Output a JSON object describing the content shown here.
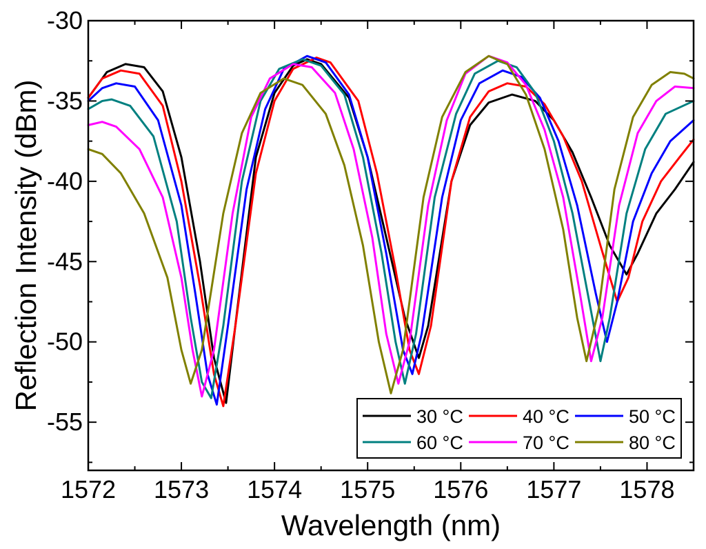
{
  "chart_data": {
    "type": "line",
    "xlabel": "Wavelength (nm)",
    "ylabel": "Reflection Intensity (dBm)",
    "xlim": [
      1572,
      1578.5
    ],
    "ylim": [
      -58,
      -30
    ],
    "xticks": [
      1572,
      1573,
      1574,
      1575,
      1576,
      1577,
      1578
    ],
    "yticks": [
      -30,
      -35,
      -40,
      -45,
      -50,
      -55
    ],
    "xtick_labels": [
      "1572",
      "1573",
      "1574",
      "1575",
      "1576",
      "1577",
      "1578"
    ],
    "ytick_labels": [
      "-30",
      "-35",
      "-40",
      "-45",
      "-50",
      "-55"
    ],
    "grid": false,
    "legend_position": "bottom-right",
    "series": [
      {
        "name": "30 °C",
        "color": "#000000",
        "points": [
          [
            1572.0,
            -34.8
          ],
          [
            1572.2,
            -33.2
          ],
          [
            1572.4,
            -32.7
          ],
          [
            1572.6,
            -32.9
          ],
          [
            1572.8,
            -34.4
          ],
          [
            1573.0,
            -38.5
          ],
          [
            1573.2,
            -45.0
          ],
          [
            1573.35,
            -51.0
          ],
          [
            1573.48,
            -53.8
          ],
          [
            1573.6,
            -48.0
          ],
          [
            1573.8,
            -38.5
          ],
          [
            1574.0,
            -34.5
          ],
          [
            1574.2,
            -32.8
          ],
          [
            1574.35,
            -32.4
          ],
          [
            1574.5,
            -32.7
          ],
          [
            1574.8,
            -34.8
          ],
          [
            1575.0,
            -38.5
          ],
          [
            1575.2,
            -43.5
          ],
          [
            1575.4,
            -48.5
          ],
          [
            1575.55,
            -51.0
          ],
          [
            1575.65,
            -49.0
          ],
          [
            1575.9,
            -40.0
          ],
          [
            1576.1,
            -36.5
          ],
          [
            1576.3,
            -35.1
          ],
          [
            1576.55,
            -34.6
          ],
          [
            1576.8,
            -35.0
          ],
          [
            1577.0,
            -36.2
          ],
          [
            1577.2,
            -38.2
          ],
          [
            1577.4,
            -41.0
          ],
          [
            1577.6,
            -44.0
          ],
          [
            1577.78,
            -45.8
          ],
          [
            1577.9,
            -44.5
          ],
          [
            1578.1,
            -42.0
          ],
          [
            1578.3,
            -40.5
          ],
          [
            1578.5,
            -38.8
          ]
        ]
      },
      {
        "name": "40 °C",
        "color": "#ff0000",
        "points": [
          [
            1572.0,
            -34.8
          ],
          [
            1572.15,
            -33.6
          ],
          [
            1572.35,
            -33.1
          ],
          [
            1572.55,
            -33.3
          ],
          [
            1572.8,
            -35.3
          ],
          [
            1573.0,
            -40.0
          ],
          [
            1573.2,
            -46.5
          ],
          [
            1573.35,
            -52.0
          ],
          [
            1573.45,
            -54.0
          ],
          [
            1573.58,
            -49.0
          ],
          [
            1573.8,
            -39.5
          ],
          [
            1574.0,
            -35.0
          ],
          [
            1574.2,
            -33.0
          ],
          [
            1574.45,
            -32.3
          ],
          [
            1574.6,
            -32.6
          ],
          [
            1574.9,
            -35.0
          ],
          [
            1575.1,
            -39.5
          ],
          [
            1575.3,
            -45.5
          ],
          [
            1575.45,
            -50.5
          ],
          [
            1575.55,
            -52.0
          ],
          [
            1575.68,
            -49.0
          ],
          [
            1575.9,
            -40.0
          ],
          [
            1576.1,
            -36.0
          ],
          [
            1576.3,
            -34.4
          ],
          [
            1576.5,
            -33.9
          ],
          [
            1576.7,
            -34.1
          ],
          [
            1576.9,
            -35.2
          ],
          [
            1577.1,
            -37.2
          ],
          [
            1577.3,
            -40.0
          ],
          [
            1577.5,
            -44.0
          ],
          [
            1577.68,
            -47.5
          ],
          [
            1577.8,
            -46.0
          ],
          [
            1577.95,
            -42.5
          ],
          [
            1578.15,
            -40.0
          ],
          [
            1578.35,
            -38.5
          ],
          [
            1578.5,
            -37.4
          ]
        ]
      },
      {
        "name": "50 °C",
        "color": "#0000ff",
        "points": [
          [
            1572.0,
            -35.0
          ],
          [
            1572.15,
            -34.2
          ],
          [
            1572.3,
            -33.9
          ],
          [
            1572.5,
            -34.1
          ],
          [
            1572.75,
            -36.2
          ],
          [
            1573.0,
            -41.5
          ],
          [
            1573.15,
            -47.0
          ],
          [
            1573.28,
            -52.0
          ],
          [
            1573.38,
            -53.9
          ],
          [
            1573.5,
            -49.0
          ],
          [
            1573.7,
            -40.5
          ],
          [
            1573.9,
            -35.5
          ],
          [
            1574.1,
            -33.0
          ],
          [
            1574.35,
            -32.2
          ],
          [
            1574.55,
            -32.6
          ],
          [
            1574.8,
            -34.6
          ],
          [
            1575.0,
            -38.5
          ],
          [
            1575.2,
            -44.5
          ],
          [
            1575.38,
            -50.5
          ],
          [
            1575.48,
            -52.0
          ],
          [
            1575.58,
            -49.5
          ],
          [
            1575.8,
            -41.0
          ],
          [
            1576.0,
            -36.2
          ],
          [
            1576.2,
            -33.9
          ],
          [
            1576.45,
            -33.1
          ],
          [
            1576.65,
            -33.5
          ],
          [
            1576.85,
            -34.8
          ],
          [
            1577.05,
            -37.5
          ],
          [
            1577.25,
            -41.5
          ],
          [
            1577.45,
            -47.0
          ],
          [
            1577.57,
            -50.0
          ],
          [
            1577.68,
            -47.5
          ],
          [
            1577.85,
            -42.5
          ],
          [
            1578.05,
            -39.5
          ],
          [
            1578.25,
            -37.5
          ],
          [
            1578.5,
            -36.2
          ]
        ]
      },
      {
        "name": "60 °C",
        "color": "#008080",
        "points": [
          [
            1572.0,
            -35.5
          ],
          [
            1572.15,
            -35.0
          ],
          [
            1572.25,
            -34.9
          ],
          [
            1572.45,
            -35.3
          ],
          [
            1572.7,
            -37.2
          ],
          [
            1572.95,
            -42.5
          ],
          [
            1573.1,
            -48.5
          ],
          [
            1573.22,
            -52.5
          ],
          [
            1573.32,
            -53.5
          ],
          [
            1573.45,
            -49.0
          ],
          [
            1573.65,
            -40.0
          ],
          [
            1573.85,
            -35.0
          ],
          [
            1574.05,
            -33.0
          ],
          [
            1574.3,
            -32.4
          ],
          [
            1574.5,
            -32.8
          ],
          [
            1574.75,
            -34.6
          ],
          [
            1574.95,
            -38.5
          ],
          [
            1575.15,
            -44.5
          ],
          [
            1575.3,
            -50.0
          ],
          [
            1575.4,
            -52.6
          ],
          [
            1575.52,
            -49.5
          ],
          [
            1575.72,
            -41.0
          ],
          [
            1575.95,
            -35.8
          ],
          [
            1576.15,
            -33.3
          ],
          [
            1576.4,
            -32.5
          ],
          [
            1576.6,
            -32.9
          ],
          [
            1576.8,
            -34.5
          ],
          [
            1577.0,
            -37.5
          ],
          [
            1577.2,
            -42.0
          ],
          [
            1577.38,
            -47.5
          ],
          [
            1577.5,
            -51.2
          ],
          [
            1577.6,
            -48.5
          ],
          [
            1577.78,
            -42.0
          ],
          [
            1577.98,
            -38.0
          ],
          [
            1578.2,
            -35.8
          ],
          [
            1578.5,
            -35.0
          ]
        ]
      },
      {
        "name": "70 °C",
        "color": "#ff00ff",
        "points": [
          [
            1572.0,
            -36.5
          ],
          [
            1572.15,
            -36.3
          ],
          [
            1572.3,
            -36.6
          ],
          [
            1572.55,
            -38.0
          ],
          [
            1572.8,
            -41.0
          ],
          [
            1573.0,
            -46.0
          ],
          [
            1573.12,
            -50.5
          ],
          [
            1573.22,
            -53.4
          ],
          [
            1573.35,
            -50.5
          ],
          [
            1573.55,
            -42.0
          ],
          [
            1573.75,
            -36.0
          ],
          [
            1573.95,
            -33.6
          ],
          [
            1574.2,
            -32.7
          ],
          [
            1574.4,
            -32.9
          ],
          [
            1574.65,
            -34.5
          ],
          [
            1574.85,
            -38.0
          ],
          [
            1575.05,
            -43.5
          ],
          [
            1575.2,
            -49.5
          ],
          [
            1575.33,
            -52.6
          ],
          [
            1575.45,
            -50.0
          ],
          [
            1575.65,
            -41.5
          ],
          [
            1575.85,
            -36.2
          ],
          [
            1576.05,
            -33.3
          ],
          [
            1576.3,
            -32.2
          ],
          [
            1576.5,
            -32.6
          ],
          [
            1576.7,
            -34.0
          ],
          [
            1576.9,
            -36.8
          ],
          [
            1577.1,
            -41.0
          ],
          [
            1577.28,
            -47.0
          ],
          [
            1577.4,
            -51.2
          ],
          [
            1577.52,
            -48.5
          ],
          [
            1577.7,
            -41.5
          ],
          [
            1577.9,
            -37.0
          ],
          [
            1578.1,
            -35.0
          ],
          [
            1578.3,
            -34.1
          ],
          [
            1578.5,
            -34.2
          ]
        ]
      },
      {
        "name": "80 °C",
        "color": "#808000",
        "points": [
          [
            1572.0,
            -38.0
          ],
          [
            1572.15,
            -38.3
          ],
          [
            1572.35,
            -39.5
          ],
          [
            1572.6,
            -42.0
          ],
          [
            1572.85,
            -46.0
          ],
          [
            1573.0,
            -50.5
          ],
          [
            1573.1,
            -52.6
          ],
          [
            1573.22,
            -50.5
          ],
          [
            1573.45,
            -42.0
          ],
          [
            1573.65,
            -37.0
          ],
          [
            1573.85,
            -34.5
          ],
          [
            1574.1,
            -33.6
          ],
          [
            1574.3,
            -34.0
          ],
          [
            1574.55,
            -35.8
          ],
          [
            1574.75,
            -39.0
          ],
          [
            1574.95,
            -44.0
          ],
          [
            1575.12,
            -50.0
          ],
          [
            1575.25,
            -53.2
          ],
          [
            1575.38,
            -50.5
          ],
          [
            1575.6,
            -41.0
          ],
          [
            1575.8,
            -36.0
          ],
          [
            1576.05,
            -33.2
          ],
          [
            1576.3,
            -32.2
          ],
          [
            1576.5,
            -32.7
          ],
          [
            1576.7,
            -34.6
          ],
          [
            1576.9,
            -38.0
          ],
          [
            1577.1,
            -43.0
          ],
          [
            1577.25,
            -48.5
          ],
          [
            1577.35,
            -51.2
          ],
          [
            1577.48,
            -48.0
          ],
          [
            1577.65,
            -40.5
          ],
          [
            1577.85,
            -36.0
          ],
          [
            1578.05,
            -34.0
          ],
          [
            1578.25,
            -33.2
          ],
          [
            1578.4,
            -33.3
          ],
          [
            1578.5,
            -33.6
          ]
        ]
      }
    ]
  }
}
